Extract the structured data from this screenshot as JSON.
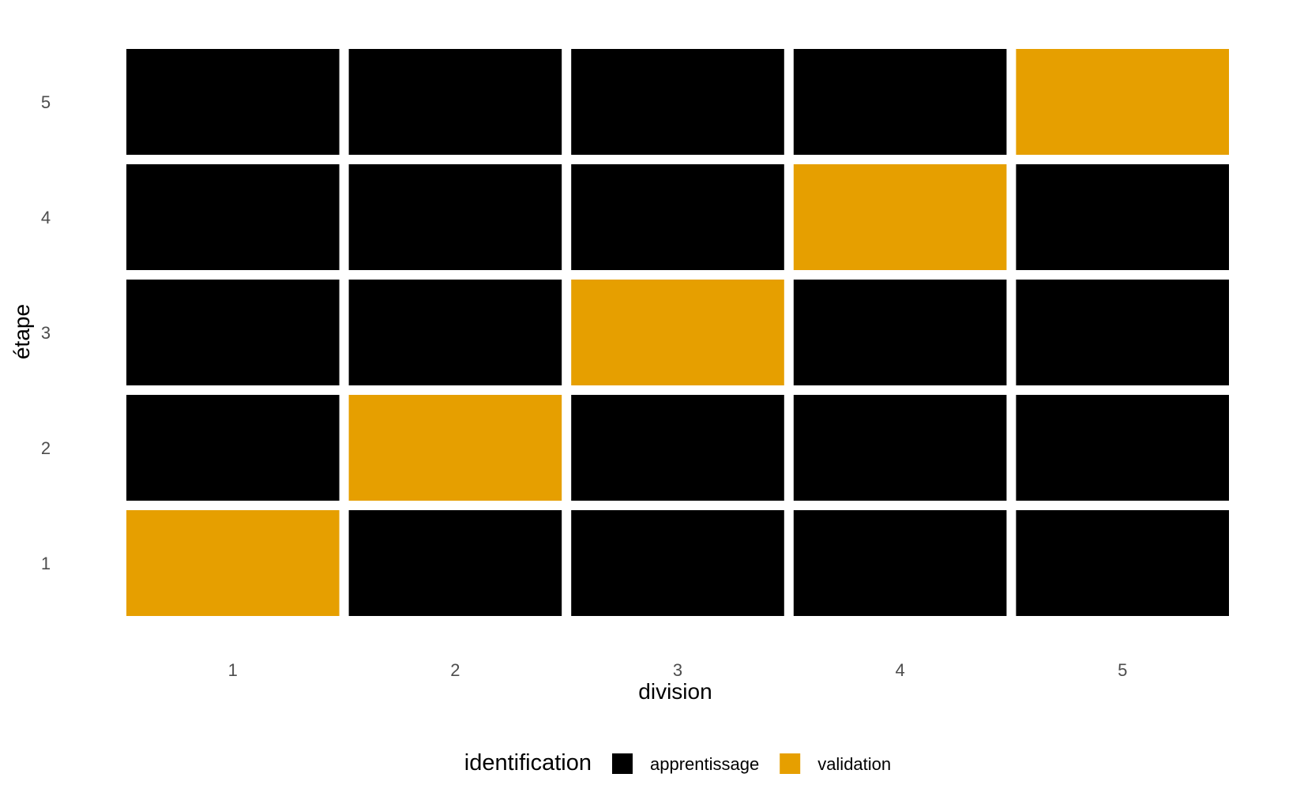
{
  "chart_data": {
    "type": "heatmap",
    "xlabel": "division",
    "ylabel": "étape",
    "x_categories": [
      "1",
      "2",
      "3",
      "4",
      "5"
    ],
    "y_categories": [
      "1",
      "2",
      "3",
      "4",
      "5"
    ],
    "cells": [
      {
        "x": "1",
        "y": "1",
        "value": "validation"
      },
      {
        "x": "2",
        "y": "1",
        "value": "apprentissage"
      },
      {
        "x": "3",
        "y": "1",
        "value": "apprentissage"
      },
      {
        "x": "4",
        "y": "1",
        "value": "apprentissage"
      },
      {
        "x": "5",
        "y": "1",
        "value": "apprentissage"
      },
      {
        "x": "1",
        "y": "2",
        "value": "apprentissage"
      },
      {
        "x": "2",
        "y": "2",
        "value": "validation"
      },
      {
        "x": "3",
        "y": "2",
        "value": "apprentissage"
      },
      {
        "x": "4",
        "y": "2",
        "value": "apprentissage"
      },
      {
        "x": "5",
        "y": "2",
        "value": "apprentissage"
      },
      {
        "x": "1",
        "y": "3",
        "value": "apprentissage"
      },
      {
        "x": "2",
        "y": "3",
        "value": "apprentissage"
      },
      {
        "x": "3",
        "y": "3",
        "value": "validation"
      },
      {
        "x": "4",
        "y": "3",
        "value": "apprentissage"
      },
      {
        "x": "5",
        "y": "3",
        "value": "apprentissage"
      },
      {
        "x": "1",
        "y": "4",
        "value": "apprentissage"
      },
      {
        "x": "2",
        "y": "4",
        "value": "apprentissage"
      },
      {
        "x": "3",
        "y": "4",
        "value": "apprentissage"
      },
      {
        "x": "4",
        "y": "4",
        "value": "validation"
      },
      {
        "x": "5",
        "y": "4",
        "value": "apprentissage"
      },
      {
        "x": "1",
        "y": "5",
        "value": "apprentissage"
      },
      {
        "x": "2",
        "y": "5",
        "value": "apprentissage"
      },
      {
        "x": "3",
        "y": "5",
        "value": "apprentissage"
      },
      {
        "x": "4",
        "y": "5",
        "value": "apprentissage"
      },
      {
        "x": "5",
        "y": "5",
        "value": "validation"
      }
    ],
    "legend": {
      "title": "identification",
      "position": "bottom",
      "entries": [
        {
          "label": "apprentissage",
          "color": "#000000"
        },
        {
          "label": "validation",
          "color": "#E69F00"
        }
      ]
    },
    "grid": false
  }
}
